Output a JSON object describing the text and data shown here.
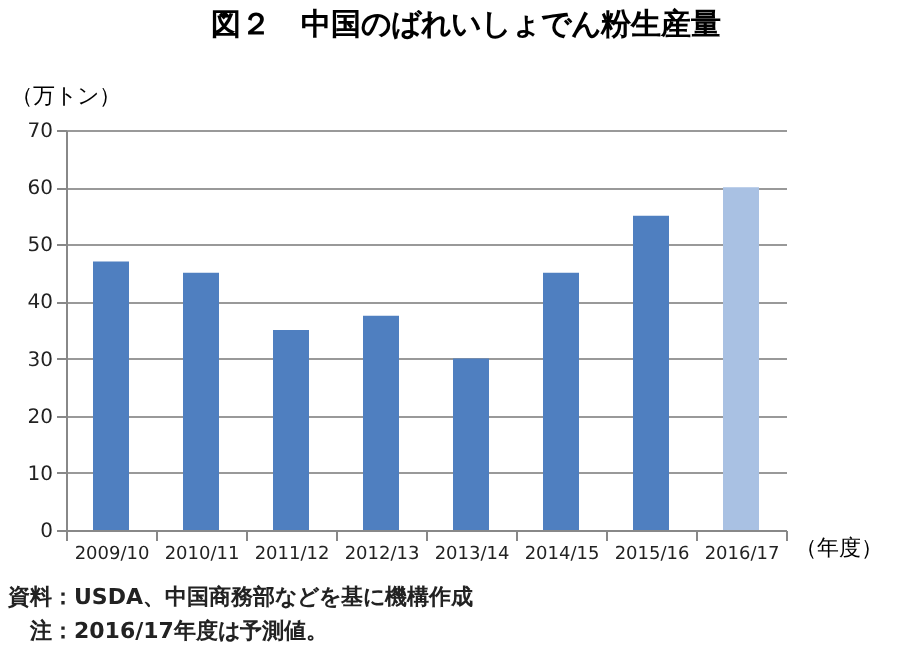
{
  "chart_data": {
    "type": "bar",
    "title": "図２　中国のばれいしょでん粉生産量",
    "ylabel": "（万トン）",
    "xlabel": "（年度）",
    "categories": [
      "2009/10",
      "2010/11",
      "2011/12",
      "2012/13",
      "2013/14",
      "2014/15",
      "2015/16",
      "2016/17"
    ],
    "values": [
      47,
      45,
      35,
      37.5,
      30,
      45,
      55,
      60
    ],
    "colors": [
      "#4f7fc0",
      "#4f7fc0",
      "#4f7fc0",
      "#4f7fc0",
      "#4f7fc0",
      "#4f7fc0",
      "#4f7fc0",
      "#a9c1e3"
    ],
    "ylim": [
      0,
      70
    ],
    "yticks": [
      0,
      10,
      20,
      30,
      40,
      50,
      60,
      70
    ],
    "grid": "y",
    "annotations": [
      "資料：USDA、中国商務部などを基に機構作成",
      "　注：2016/17年度は予測値。"
    ]
  }
}
